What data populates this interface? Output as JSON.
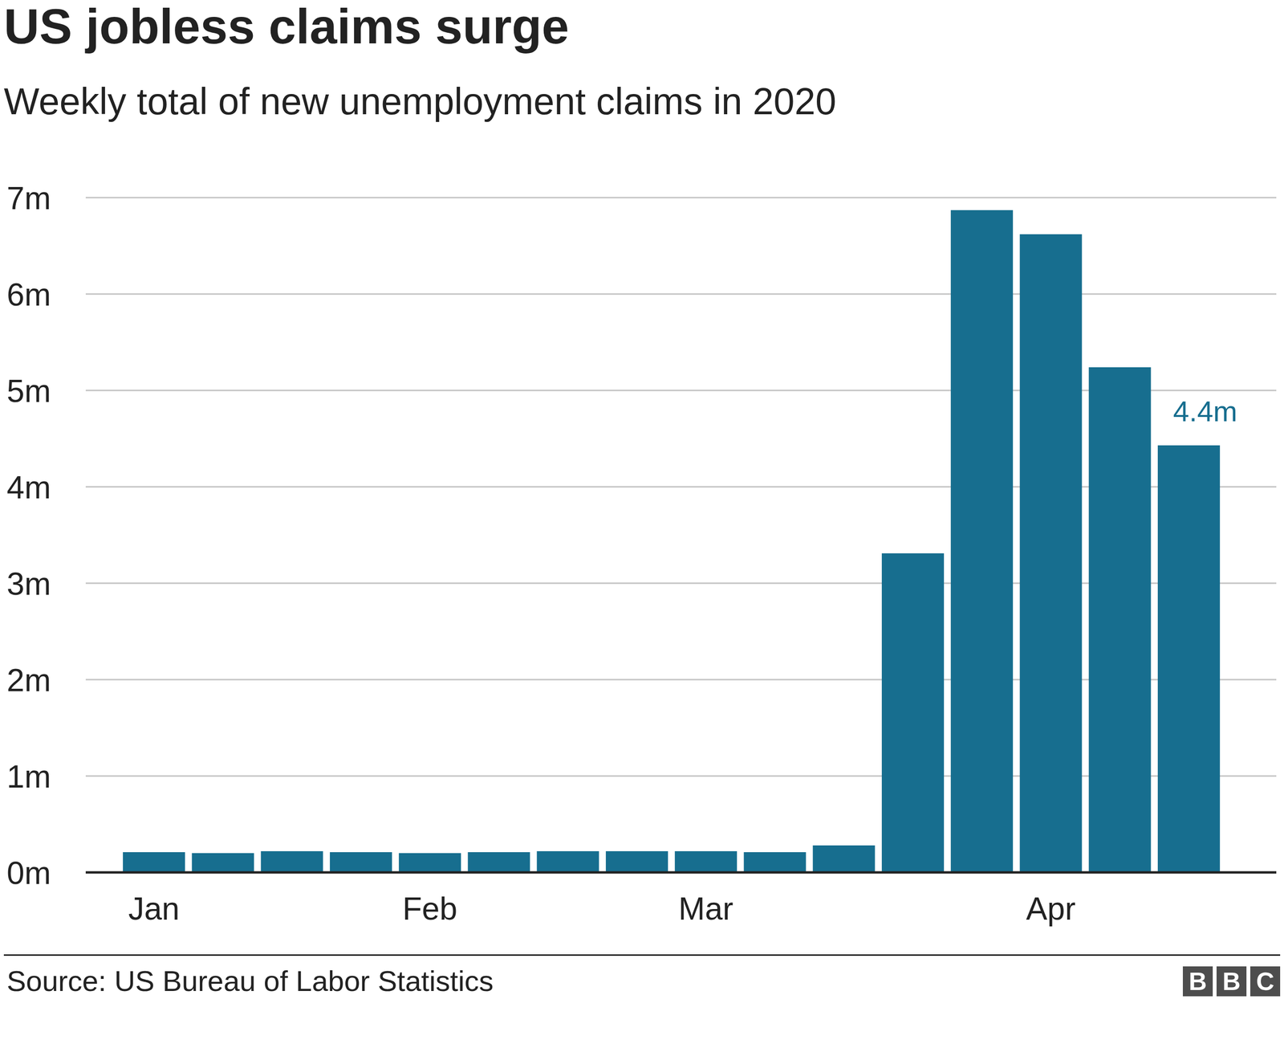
{
  "chart_data": {
    "type": "bar",
    "title": "US jobless claims surge",
    "subtitle": "Weekly total of new unemployment claims in 2020",
    "source": "Source: US Bureau of Labor Statistics",
    "credit": "BBC",
    "categories": [
      "Jan",
      null,
      null,
      null,
      "Feb",
      null,
      null,
      null,
      "Mar",
      null,
      null,
      null,
      null,
      "Apr",
      null,
      null
    ],
    "values": [
      0.21,
      0.2,
      0.22,
      0.21,
      0.2,
      0.21,
      0.22,
      0.22,
      0.22,
      0.21,
      0.28,
      3.31,
      6.87,
      6.62,
      5.24,
      4.43
    ],
    "value_labels": [
      null,
      null,
      null,
      null,
      null,
      null,
      null,
      null,
      null,
      null,
      null,
      null,
      null,
      null,
      null,
      "4.4m"
    ],
    "data_labels": true,
    "color": "#176e8f",
    "ylim": [
      0,
      7
    ],
    "yticks": [
      {
        "value": 0,
        "label": "0m"
      },
      {
        "value": 1,
        "label": "1m"
      },
      {
        "value": 2,
        "label": "2m"
      },
      {
        "value": 3,
        "label": "3m"
      },
      {
        "value": 4,
        "label": "4m"
      },
      {
        "value": 5,
        "label": "5m"
      },
      {
        "value": 6,
        "label": "6m"
      },
      {
        "value": 7,
        "label": "7m"
      }
    ],
    "grid": true
  }
}
